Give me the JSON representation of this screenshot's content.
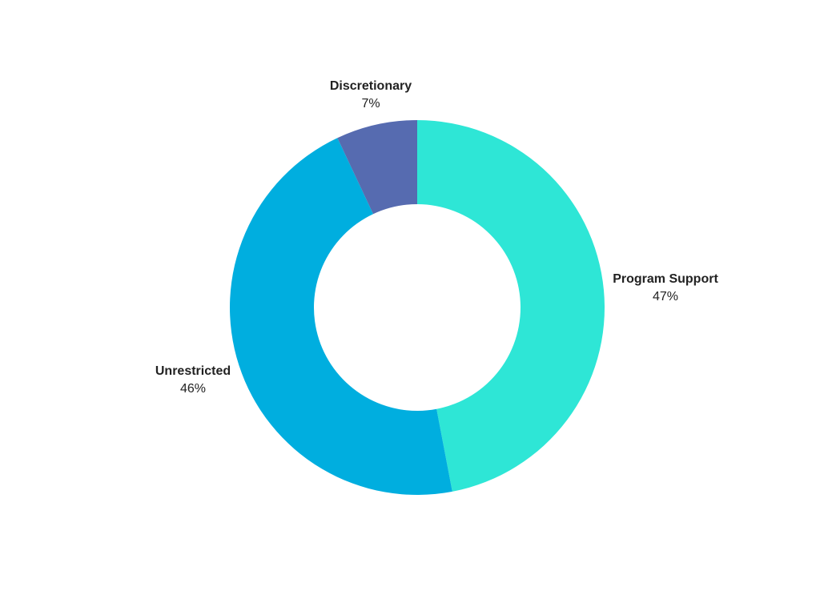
{
  "chart_data": {
    "type": "pie",
    "variant": "donut",
    "slices": [
      {
        "label": "Program Support",
        "value": 47,
        "value_label": "47%",
        "color": "#2ee6d6"
      },
      {
        "label": "Unrestricted",
        "value": 46,
        "value_label": "46%",
        "color": "#00aedf"
      },
      {
        "label": "Discretionary",
        "value": 7,
        "value_label": "7%",
        "color": "#566bb0"
      }
    ],
    "legend": "none",
    "start_angle": "top",
    "direction": "clockwise"
  }
}
